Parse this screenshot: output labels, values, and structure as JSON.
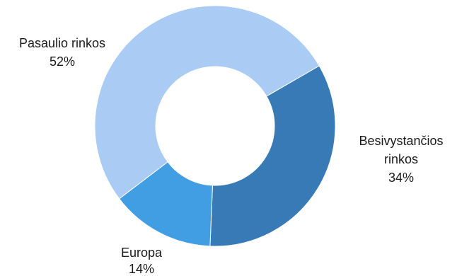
{
  "chart_data": {
    "type": "pie",
    "title": "",
    "slices": [
      {
        "name": "Besivystančios rinkos",
        "label_lines": [
          "Besivystančios",
          "rinkos"
        ],
        "value": 34,
        "value_label": "34%",
        "color": "#377ab5"
      },
      {
        "name": "Europa",
        "label_lines": [
          "Europa"
        ],
        "value": 14,
        "value_label": "14%",
        "color": "#429ee2"
      },
      {
        "name": "Pasaulio rinkos",
        "label_lines": [
          "Pasaulio rinkos"
        ],
        "value": 52,
        "value_label": "52%",
        "color": "#a9cbf4"
      }
    ],
    "legend": "none"
  }
}
